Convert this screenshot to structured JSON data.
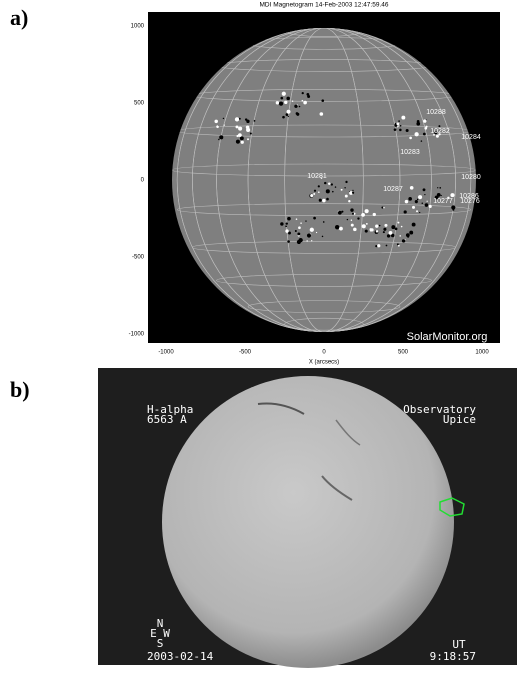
{
  "panels": [
    {
      "label": "a)",
      "title": "MDI Magnetogram 14-Feb-2003 12:47:59.46",
      "xlabel": "X (arcsecs)",
      "xticks": [
        -1000,
        -500,
        0,
        500,
        1000
      ],
      "yticks": [
        1000,
        500,
        0,
        -500,
        -1000
      ],
      "regions": [
        "10288",
        "10282",
        "10284",
        "10283",
        "10280",
        "10281",
        "10287",
        "10286",
        "10276",
        "10277"
      ],
      "watermark": "SolarMonitor.org"
    },
    {
      "label": "b)",
      "top_left": [
        "H-alpha",
        "6563 A"
      ],
      "top_right": [
        "Observatory",
        "Upice"
      ],
      "compass": [
        "N",
        "E W",
        "S"
      ],
      "date": "2003-02-14",
      "time": [
        "UT",
        "9:18:57"
      ]
    }
  ]
}
